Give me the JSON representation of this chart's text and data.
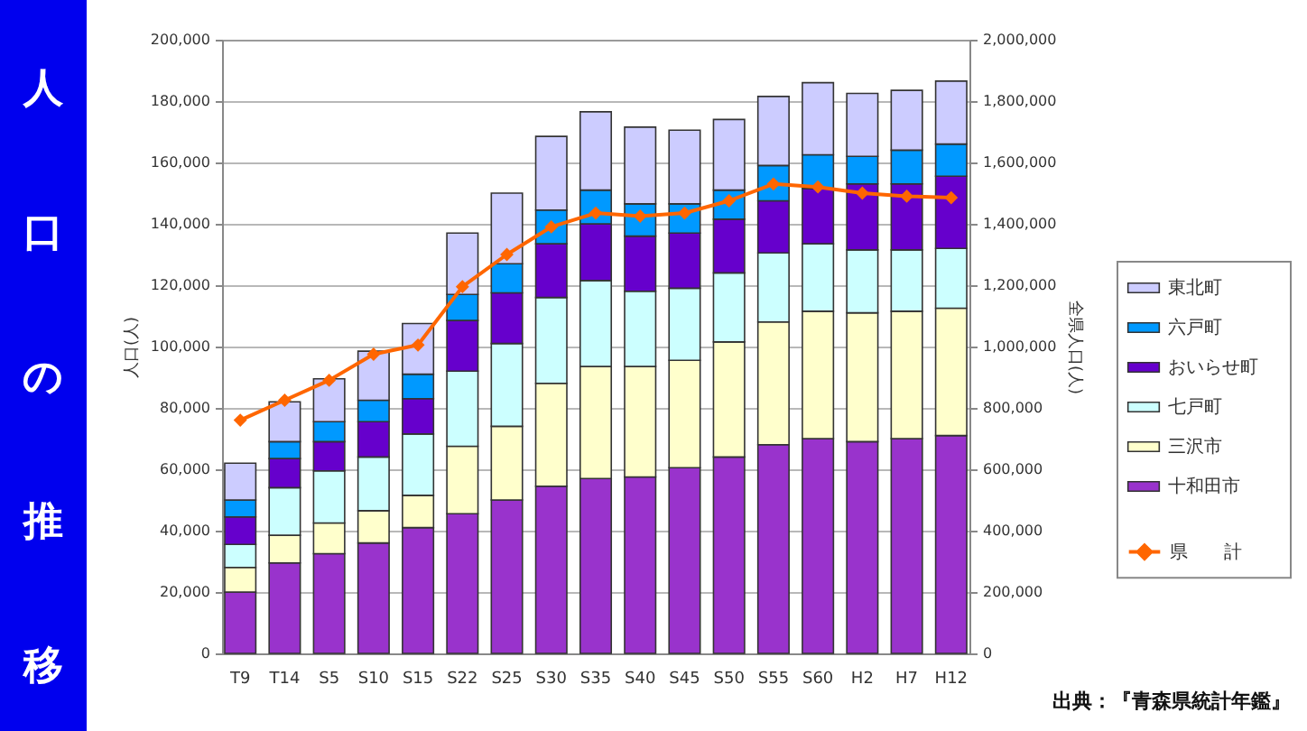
{
  "chart_data": {
    "type": "bar",
    "title": "人口の推移",
    "stacked": true,
    "categories": [
      "T9",
      "T14",
      "S5",
      "S10",
      "S15",
      "S22",
      "S25",
      "S30",
      "S35",
      "S40",
      "S45",
      "S50",
      "S55",
      "S60",
      "H2",
      "H7",
      "H12"
    ],
    "ylabel": "人口(人)",
    "y2label": "全県人口(人)",
    "ylim": [
      0,
      200000
    ],
    "yticks": [
      0,
      {
        "value": 20000,
        "label": "20,000"
      },
      {
        "value": 40000,
        "label": "40,000"
      },
      {
        "value": 60000,
        "label": "60,000"
      },
      {
        "value": 80000,
        "label": "80,000"
      },
      {
        "value": 100000,
        "label": "100,000"
      },
      {
        "value": 120000,
        "label": "120,000"
      },
      {
        "value": 140000,
        "label": "140,000"
      },
      {
        "value": 160000,
        "label": "160,000"
      },
      {
        "value": 180000,
        "label": "180,000"
      },
      {
        "value": 200000,
        "label": "200,000"
      }
    ],
    "y2lim": [
      0,
      2000000
    ],
    "y2ticks": [
      0,
      {
        "value": 200000,
        "label": "200,000"
      },
      {
        "value": 400000,
        "label": "400,000"
      },
      {
        "value": 600000,
        "label": "600,000"
      },
      {
        "value": 800000,
        "label": "800,000"
      },
      {
        "value": 1000000,
        "label": "1,000,000"
      },
      {
        "value": 1200000,
        "label": "1,200,000"
      },
      {
        "value": 1400000,
        "label": "1,400,000"
      },
      {
        "value": 1600000,
        "label": "1,600,000"
      },
      {
        "value": 1800000,
        "label": "1,800,000"
      },
      {
        "value": 2000000,
        "label": "2,000,000"
      }
    ],
    "grid": "y",
    "legend": "right",
    "marker": "diamond",
    "annotations": [
      "出典：『青森県統計年鑑』"
    ],
    "series": [
      {
        "name": "十和田市",
        "color": "#9933cc",
        "values": [
          20000,
          29500,
          32500,
          36000,
          41000,
          45500,
          50000,
          54500,
          57000,
          57500,
          60500,
          64000,
          68000,
          70000,
          69000,
          70000,
          71000
        ]
      },
      {
        "name": "三沢市",
        "color": "#ffffcc",
        "values": [
          8000,
          9000,
          10000,
          10500,
          10500,
          22000,
          24000,
          33500,
          36500,
          36000,
          35000,
          37500,
          40000,
          41500,
          42000,
          41500,
          41500
        ]
      },
      {
        "name": "七戸町",
        "color": "#ccffff",
        "values": [
          7500,
          15500,
          17000,
          17500,
          20000,
          24500,
          27000,
          28000,
          28000,
          24500,
          23500,
          22500,
          22500,
          22000,
          20500,
          20000,
          19500
        ]
      },
      {
        "name": "おいらせ町",
        "color": "#6600cc",
        "values": [
          9000,
          9500,
          9500,
          11500,
          11500,
          16500,
          16500,
          17500,
          18500,
          18000,
          18000,
          17500,
          17000,
          18000,
          21500,
          21500,
          23500
        ]
      },
      {
        "name": "六戸町",
        "color": "#0099ff",
        "values": [
          5500,
          5500,
          6500,
          7000,
          8000,
          8500,
          9500,
          11000,
          11000,
          10500,
          9500,
          9500,
          11500,
          11000,
          9000,
          11000,
          10500
        ]
      },
      {
        "name": "東北町",
        "color": "#ccccff",
        "values": [
          12000,
          13000,
          14000,
          16000,
          16500,
          20000,
          23000,
          24000,
          25500,
          25000,
          24000,
          23000,
          22500,
          23500,
          20500,
          19500,
          20500
        ]
      },
      {
        "name": "県　　計",
        "type": "line",
        "axis": "y2",
        "color": "#ff6600",
        "values": [
          760000,
          825000,
          890000,
          975000,
          1005000,
          1195000,
          1300000,
          1390000,
          1435000,
          1425000,
          1435000,
          1475000,
          1530000,
          1520000,
          1500000,
          1490000,
          1485000
        ]
      }
    ]
  }
}
